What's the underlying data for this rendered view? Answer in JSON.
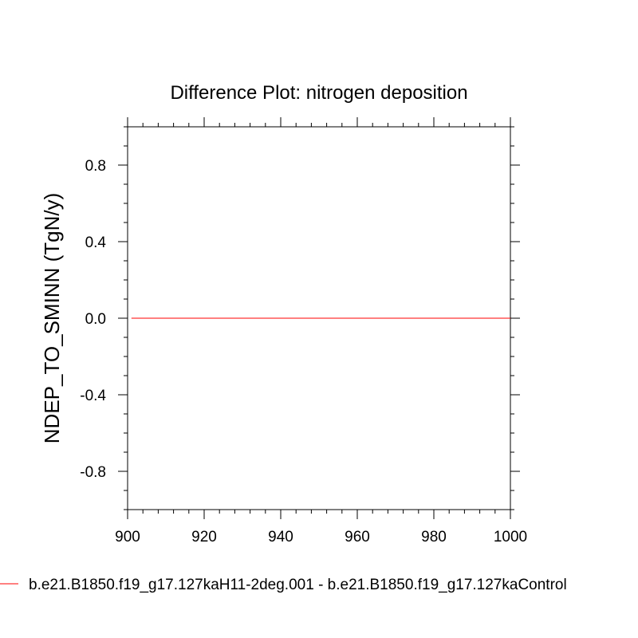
{
  "chart_data": {
    "type": "line",
    "title": "Difference Plot: nitrogen deposition",
    "xlabel": "",
    "ylabel": "NDEP_TO_SMINN  (TgN/y)",
    "xlim": [
      900,
      1000
    ],
    "ylim": [
      -1.0,
      1.0
    ],
    "x_ticks": [
      "900",
      "920",
      "940",
      "960",
      "980",
      "1000"
    ],
    "y_ticks": [
      "0.8",
      "0.4",
      "0.0",
      "-0.4",
      "-0.8"
    ],
    "grid": false,
    "legend_position": "bottom",
    "series": [
      {
        "name": "b.e21.B1850.f19_g17.127kaH11-2deg.001 - b.e21.B1850.f19_g17.127kaControl",
        "color": "#ff0000",
        "x": [
          901,
          1000
        ],
        "y": [
          0.0,
          0.0
        ]
      }
    ]
  }
}
